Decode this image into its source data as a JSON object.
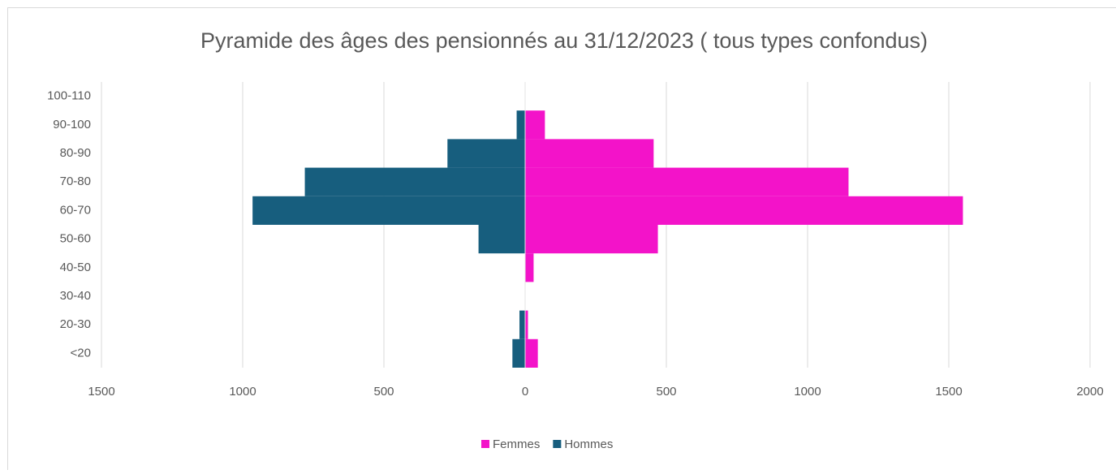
{
  "chart_data": {
    "type": "bar",
    "orientation": "horizontal",
    "stacked": true,
    "title": "Pyramide des âges des pensionnés  au 31/12/2023 ( tous types confondus)",
    "categories": [
      "100-110",
      "90-100",
      "80-90",
      "70-80",
      "60-70",
      "50-60",
      "40-50",
      "30-40",
      "20-30",
      "<20"
    ],
    "series": [
      {
        "name": "Femmes",
        "color": "#f313c9",
        "values": [
          0,
          70,
          455,
          1145,
          1550,
          470,
          30,
          0,
          10,
          45
        ]
      },
      {
        "name": "Hommes",
        "color": "#175e7e",
        "values": [
          0,
          -30,
          -275,
          -780,
          -965,
          -165,
          0,
          0,
          -20,
          -45
        ]
      }
    ],
    "xlim": [
      -1500,
      2000
    ],
    "xticks": [
      {
        "value": -1500,
        "label": "1500"
      },
      {
        "value": -1000,
        "label": "1000"
      },
      {
        "value": -500,
        "label": "500"
      },
      0,
      500,
      1000,
      1500,
      2000
    ],
    "grid": true,
    "legend": "bottom"
  }
}
